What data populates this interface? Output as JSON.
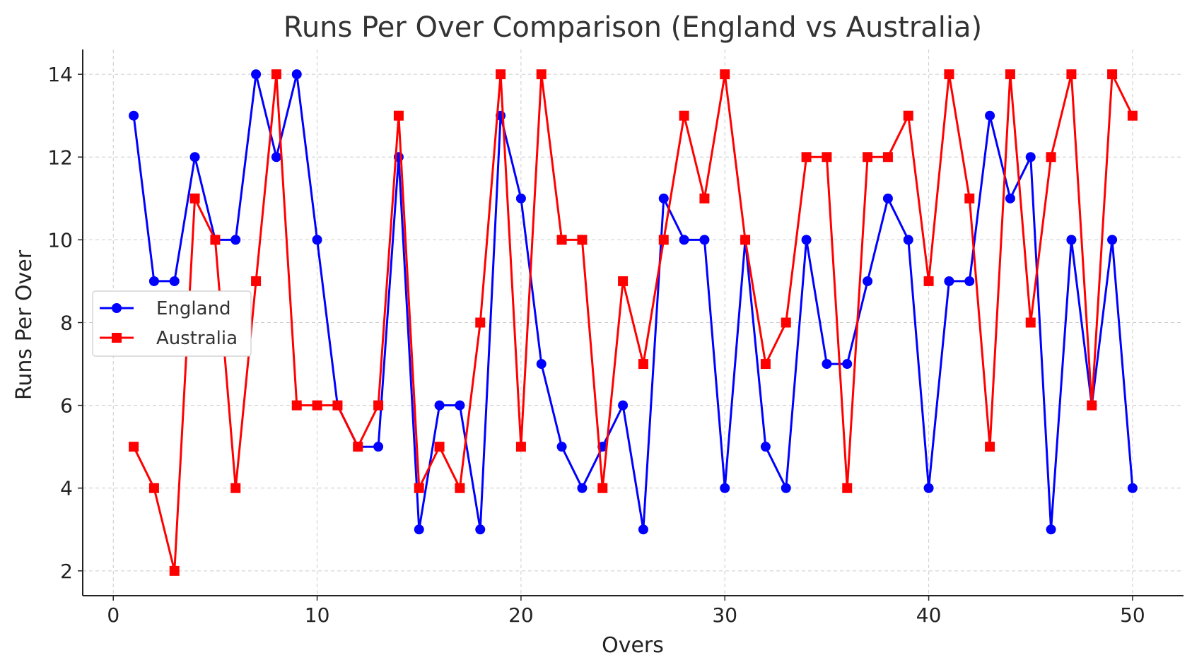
{
  "chart_data": {
    "type": "line",
    "title": "Runs Per Over Comparison (England vs Australia)",
    "xlabel": "Overs",
    "ylabel": "Runs Per Over",
    "xlim": [
      -1.5,
      52.5
    ],
    "ylim": [
      1.4,
      14.6
    ],
    "xticks": [
      0,
      10,
      20,
      30,
      40,
      50
    ],
    "yticks": [
      2,
      4,
      6,
      8,
      10,
      12,
      14
    ],
    "grid": true,
    "legend_position": "center-left",
    "x": [
      1,
      2,
      3,
      4,
      5,
      6,
      7,
      8,
      9,
      10,
      11,
      12,
      13,
      14,
      15,
      16,
      17,
      18,
      19,
      20,
      21,
      22,
      23,
      24,
      25,
      26,
      27,
      28,
      29,
      30,
      31,
      32,
      33,
      34,
      35,
      36,
      37,
      38,
      39,
      40,
      41,
      42,
      43,
      44,
      45,
      46,
      47,
      48,
      49,
      50
    ],
    "series": [
      {
        "name": "England",
        "color": "#0000ff",
        "marker": "circle",
        "values": [
          13,
          9,
          9,
          12,
          10,
          10,
          14,
          12,
          14,
          10,
          6,
          5,
          5,
          12,
          3,
          6,
          6,
          3,
          13,
          11,
          7,
          5,
          4,
          5,
          6,
          3,
          11,
          10,
          10,
          4,
          10,
          5,
          4,
          10,
          7,
          7,
          9,
          11,
          10,
          4,
          9,
          9,
          13,
          11,
          12,
          3,
          10,
          6,
          10,
          4
        ]
      },
      {
        "name": "Australia",
        "color": "#ff0000",
        "marker": "square",
        "values": [
          5,
          4,
          2,
          11,
          10,
          4,
          9,
          14,
          6,
          6,
          6,
          5,
          6,
          13,
          4,
          5,
          4,
          8,
          14,
          5,
          14,
          10,
          10,
          4,
          9,
          7,
          10,
          13,
          11,
          14,
          10,
          7,
          8,
          12,
          12,
          4,
          12,
          12,
          13,
          9,
          14,
          11,
          5,
          14,
          8,
          12,
          14,
          6,
          14,
          13
        ]
      }
    ]
  }
}
